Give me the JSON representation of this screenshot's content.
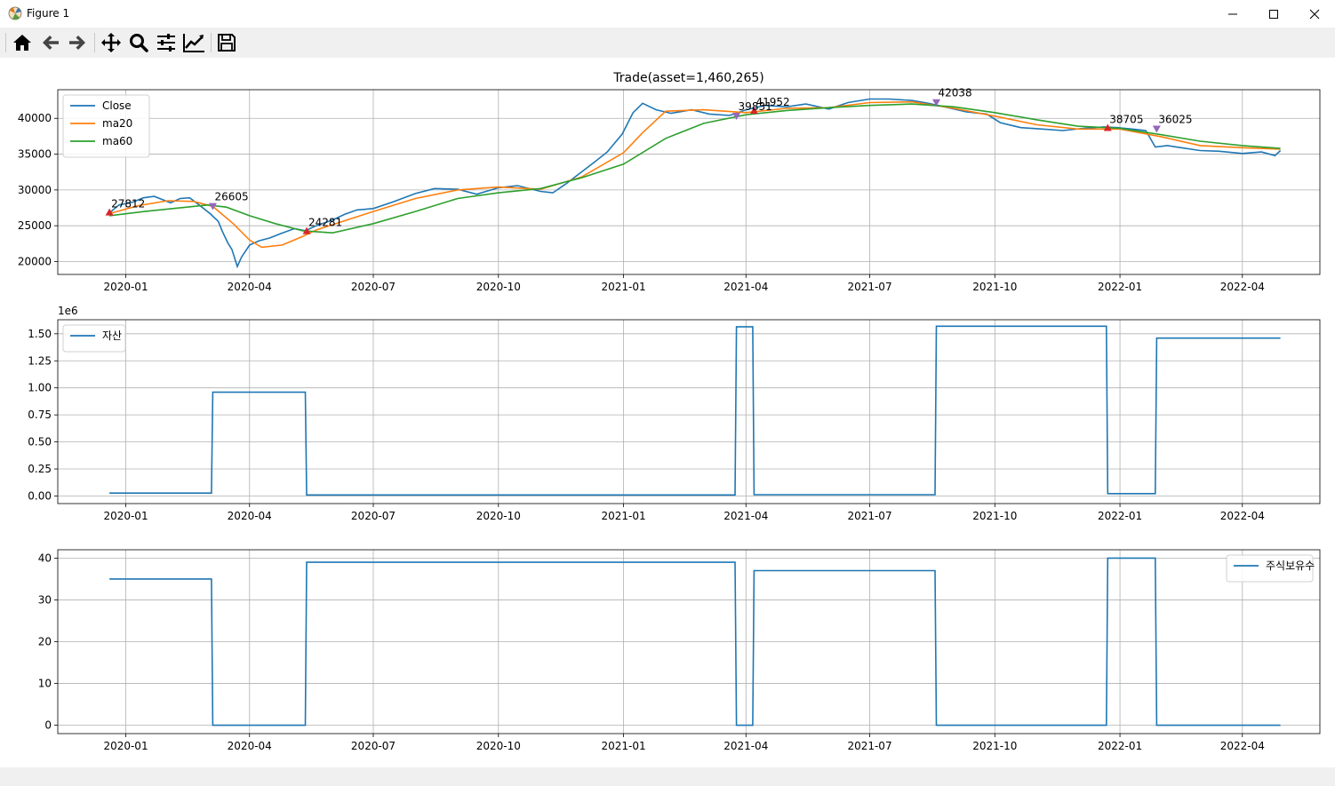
{
  "window": {
    "title": "Figure 1"
  },
  "toolbar": {
    "buttons": [
      "home-icon",
      "back-icon",
      "forward-icon",
      "pan-icon",
      "zoom-icon",
      "configure-subplots-icon",
      "edit-axis-icon",
      "save-icon"
    ]
  },
  "colors": {
    "close": "#1f77b4",
    "ma20": "#ff7f0e",
    "ma60": "#2ca02c",
    "buy": "#d62728",
    "sell": "#9467bd",
    "grid": "#b0b0b0"
  },
  "chart_data": [
    {
      "type": "line",
      "title": "Trade(asset=1,460,265)",
      "x_ticks": [
        "2020-01",
        "2020-04",
        "2020-07",
        "2020-10",
        "2021-01",
        "2021-04",
        "2021-07",
        "2021-10",
        "2022-01",
        "2022-04"
      ],
      "y_ticks": [
        "20000",
        "25000",
        "30000",
        "35000",
        "40000"
      ],
      "ylim": [
        18200,
        44000
      ],
      "xlim": [
        "2019-11-12",
        "2022-05-28"
      ],
      "grid": true,
      "legend_position": "top-left",
      "series": [
        {
          "name": "Close",
          "color": "#1f77b4",
          "x": [
            "2019-12-20",
            "2019-12-27",
            "2020-01-06",
            "2020-01-14",
            "2020-01-22",
            "2020-02-03",
            "2020-02-10",
            "2020-02-17",
            "2020-02-24",
            "2020-03-03",
            "2020-03-09",
            "2020-03-12",
            "2020-03-16",
            "2020-03-19",
            "2020-03-23",
            "2020-03-26",
            "2020-04-01",
            "2020-04-08",
            "2020-04-16",
            "2020-04-24",
            "2020-05-04",
            "2020-05-12",
            "2020-05-20",
            "2020-06-01",
            "2020-06-10",
            "2020-06-19",
            "2020-07-01",
            "2020-07-15",
            "2020-08-01",
            "2020-08-15",
            "2020-09-01",
            "2020-09-15",
            "2020-10-01",
            "2020-10-15",
            "2020-11-01",
            "2020-11-10",
            "2020-11-20",
            "2020-12-01",
            "2020-12-10",
            "2020-12-20",
            "2020-12-31",
            "2021-01-08",
            "2021-01-15",
            "2021-01-25",
            "2021-02-05",
            "2021-02-20",
            "2021-03-05",
            "2021-03-20",
            "2021-04-01",
            "2021-04-15",
            "2021-05-01",
            "2021-05-15",
            "2021-06-01",
            "2021-06-15",
            "2021-07-01",
            "2021-07-15",
            "2021-08-01",
            "2021-08-13",
            "2021-08-25",
            "2021-09-10",
            "2021-09-25",
            "2021-10-05",
            "2021-10-20",
            "2021-11-05",
            "2021-11-20",
            "2021-12-05",
            "2021-12-20",
            "2021-12-30",
            "2022-01-10",
            "2022-01-20",
            "2022-01-27",
            "2022-02-05",
            "2022-02-15",
            "2022-03-01",
            "2022-03-15",
            "2022-04-01",
            "2022-04-15",
            "2022-04-25",
            "2022-04-29"
          ],
          "y": [
            26800,
            27900,
            28300,
            28900,
            29100,
            28200,
            28800,
            28900,
            27900,
            26700,
            25600,
            24200,
            22600,
            21700,
            19300,
            20600,
            22300,
            22900,
            23300,
            23900,
            24600,
            24300,
            25000,
            25800,
            26600,
            27200,
            27400,
            28300,
            29500,
            30200,
            30100,
            29400,
            30300,
            30600,
            29800,
            29600,
            30900,
            32500,
            33800,
            35300,
            37800,
            40800,
            42100,
            41200,
            40700,
            41200,
            40600,
            40400,
            41200,
            41800,
            41600,
            42000,
            41300,
            42200,
            42700,
            42700,
            42500,
            42100,
            41600,
            40900,
            40600,
            39400,
            38700,
            38500,
            38300,
            38600,
            38800,
            38700,
            38500,
            38300,
            36000,
            36200,
            35900,
            35500,
            35400,
            35100,
            35300,
            34800,
            35500
          ]
        },
        {
          "name": "ma20",
          "color": "#ff7f0e",
          "x": [
            "2019-12-20",
            "2020-01-10",
            "2020-02-01",
            "2020-02-20",
            "2020-03-05",
            "2020-03-20",
            "2020-04-01",
            "2020-04-10",
            "2020-04-25",
            "2020-05-10",
            "2020-05-20",
            "2020-06-10",
            "2020-07-01",
            "2020-08-01",
            "2020-09-01",
            "2020-10-01",
            "2020-11-01",
            "2020-12-01",
            "2021-01-01",
            "2021-01-15",
            "2021-02-01",
            "2021-03-01",
            "2021-04-01",
            "2021-05-01",
            "2021-06-01",
            "2021-07-01",
            "2021-08-01",
            "2021-09-01",
            "2021-10-01",
            "2021-11-01",
            "2021-12-01",
            "2022-01-01",
            "2022-02-01",
            "2022-03-01",
            "2022-04-01",
            "2022-04-29"
          ],
          "y": [
            26700,
            27800,
            28500,
            28400,
            27700,
            25300,
            23000,
            22000,
            22300,
            23500,
            24400,
            25700,
            27000,
            28800,
            30000,
            30400,
            30100,
            31800,
            35200,
            38000,
            41000,
            41200,
            40800,
            41400,
            41500,
            42200,
            42300,
            41400,
            40300,
            39100,
            38500,
            38500,
            37400,
            36200,
            35900,
            35700
          ]
        },
        {
          "name": "ma60",
          "color": "#2ca02c",
          "x": [
            "2019-12-20",
            "2020-01-15",
            "2020-02-15",
            "2020-03-01",
            "2020-03-15",
            "2020-04-01",
            "2020-04-20",
            "2020-05-10",
            "2020-06-01",
            "2020-07-01",
            "2020-08-01",
            "2020-09-01",
            "2020-10-01",
            "2020-11-01",
            "2020-12-01",
            "2021-01-01",
            "2021-02-01",
            "2021-03-01",
            "2021-04-01",
            "2021-05-01",
            "2021-06-01",
            "2021-07-01",
            "2021-08-01",
            "2021-09-01",
            "2021-10-01",
            "2021-11-01",
            "2021-12-01",
            "2022-01-01",
            "2022-02-01",
            "2022-03-01",
            "2022-04-01",
            "2022-04-29"
          ],
          "y": [
            26400,
            27000,
            27600,
            27900,
            27600,
            26400,
            25300,
            24300,
            24000,
            25300,
            27000,
            28800,
            29600,
            30200,
            31700,
            33600,
            37200,
            39300,
            40500,
            41100,
            41500,
            41800,
            42000,
            41600,
            40800,
            39800,
            38900,
            38600,
            37700,
            36800,
            36200,
            35800
          ]
        }
      ],
      "buy_markers": [
        {
          "x": "2019-12-20",
          "y": 26800,
          "label": "27812"
        },
        {
          "x": "2020-05-13",
          "y": 24200,
          "label": "24281"
        },
        {
          "x": "2021-04-07",
          "y": 41000,
          "label": "41952"
        },
        {
          "x": "2021-12-23",
          "y": 38600,
          "label": "38705"
        }
      ],
      "sell_markers": [
        {
          "x": "2020-03-05",
          "y": 27800,
          "label": "26605"
        },
        {
          "x": "2021-03-25",
          "y": 40400,
          "label": "39831"
        },
        {
          "x": "2021-08-19",
          "y": 42300,
          "label": "42038"
        },
        {
          "x": "2022-01-28",
          "y": 38600,
          "label": "36025"
        }
      ]
    },
    {
      "type": "line",
      "title": "",
      "scale_label": "1e6",
      "x_ticks": [
        "2020-01",
        "2020-04",
        "2020-07",
        "2020-10",
        "2021-01",
        "2021-04",
        "2021-07",
        "2021-10",
        "2022-01",
        "2022-04"
      ],
      "y_ticks": [
        "0.00",
        "0.25",
        "0.50",
        "0.75",
        "1.00",
        "1.25",
        "1.50"
      ],
      "ylim": [
        -0.07,
        1.63
      ],
      "xlim": [
        "2019-11-12",
        "2022-05-28"
      ],
      "grid": true,
      "legend_position": "top-left",
      "series": [
        {
          "name": "자산",
          "color": "#1f77b4",
          "x": [
            "2019-12-20",
            "2020-03-04",
            "2020-03-05",
            "2020-05-12",
            "2020-05-13",
            "2021-03-24",
            "2021-03-25",
            "2021-04-06",
            "2021-04-07",
            "2021-08-18",
            "2021-08-19",
            "2021-12-22",
            "2021-12-23",
            "2022-01-27",
            "2022-01-28",
            "2022-04-29"
          ],
          "y": [
            0.027,
            0.027,
            0.96,
            0.96,
            0.01,
            0.01,
            1.565,
            1.565,
            0.012,
            0.012,
            1.57,
            1.57,
            0.022,
            0.022,
            1.46,
            1.46
          ]
        }
      ]
    },
    {
      "type": "line",
      "title": "",
      "x_ticks": [
        "2020-01",
        "2020-04",
        "2020-07",
        "2020-10",
        "2021-01",
        "2021-04",
        "2021-07",
        "2021-10",
        "2022-01",
        "2022-04"
      ],
      "y_ticks": [
        "0",
        "10",
        "20",
        "30",
        "40"
      ],
      "ylim": [
        -2,
        42
      ],
      "xlim": [
        "2019-11-12",
        "2022-05-28"
      ],
      "grid": true,
      "legend_position": "top-right",
      "series": [
        {
          "name": "주식보유수",
          "color": "#1f77b4",
          "x": [
            "2019-12-20",
            "2020-03-04",
            "2020-03-05",
            "2020-05-12",
            "2020-05-13",
            "2021-03-24",
            "2021-03-25",
            "2021-04-06",
            "2021-04-07",
            "2021-08-18",
            "2021-08-19",
            "2021-12-22",
            "2021-12-23",
            "2022-01-27",
            "2022-01-28",
            "2022-04-29"
          ],
          "y": [
            35,
            35,
            0,
            0,
            39,
            39,
            0,
            0,
            37,
            37,
            0,
            0,
            40,
            40,
            0,
            0
          ]
        }
      ]
    }
  ]
}
